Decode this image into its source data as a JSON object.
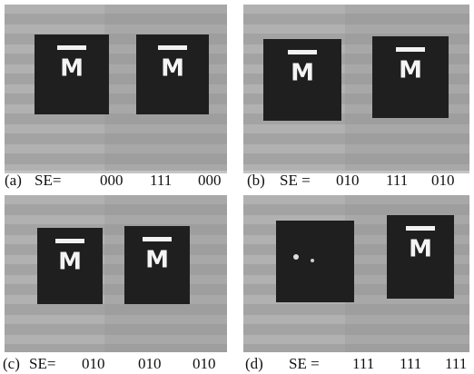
{
  "screen_symbol": "M",
  "panels": [
    {
      "label": "(a)",
      "se": "SE=",
      "codes": [
        "000",
        "111",
        "000"
      ]
    },
    {
      "label": "(b)",
      "se": "SE =",
      "codes": [
        "010",
        "111",
        "010"
      ]
    },
    {
      "label": "(c)",
      "se": "SE=",
      "codes": [
        "010",
        "010",
        "010"
      ]
    },
    {
      "label": "(d)",
      "se": "SE =",
      "codes": [
        "111",
        "111",
        "111"
      ]
    }
  ]
}
